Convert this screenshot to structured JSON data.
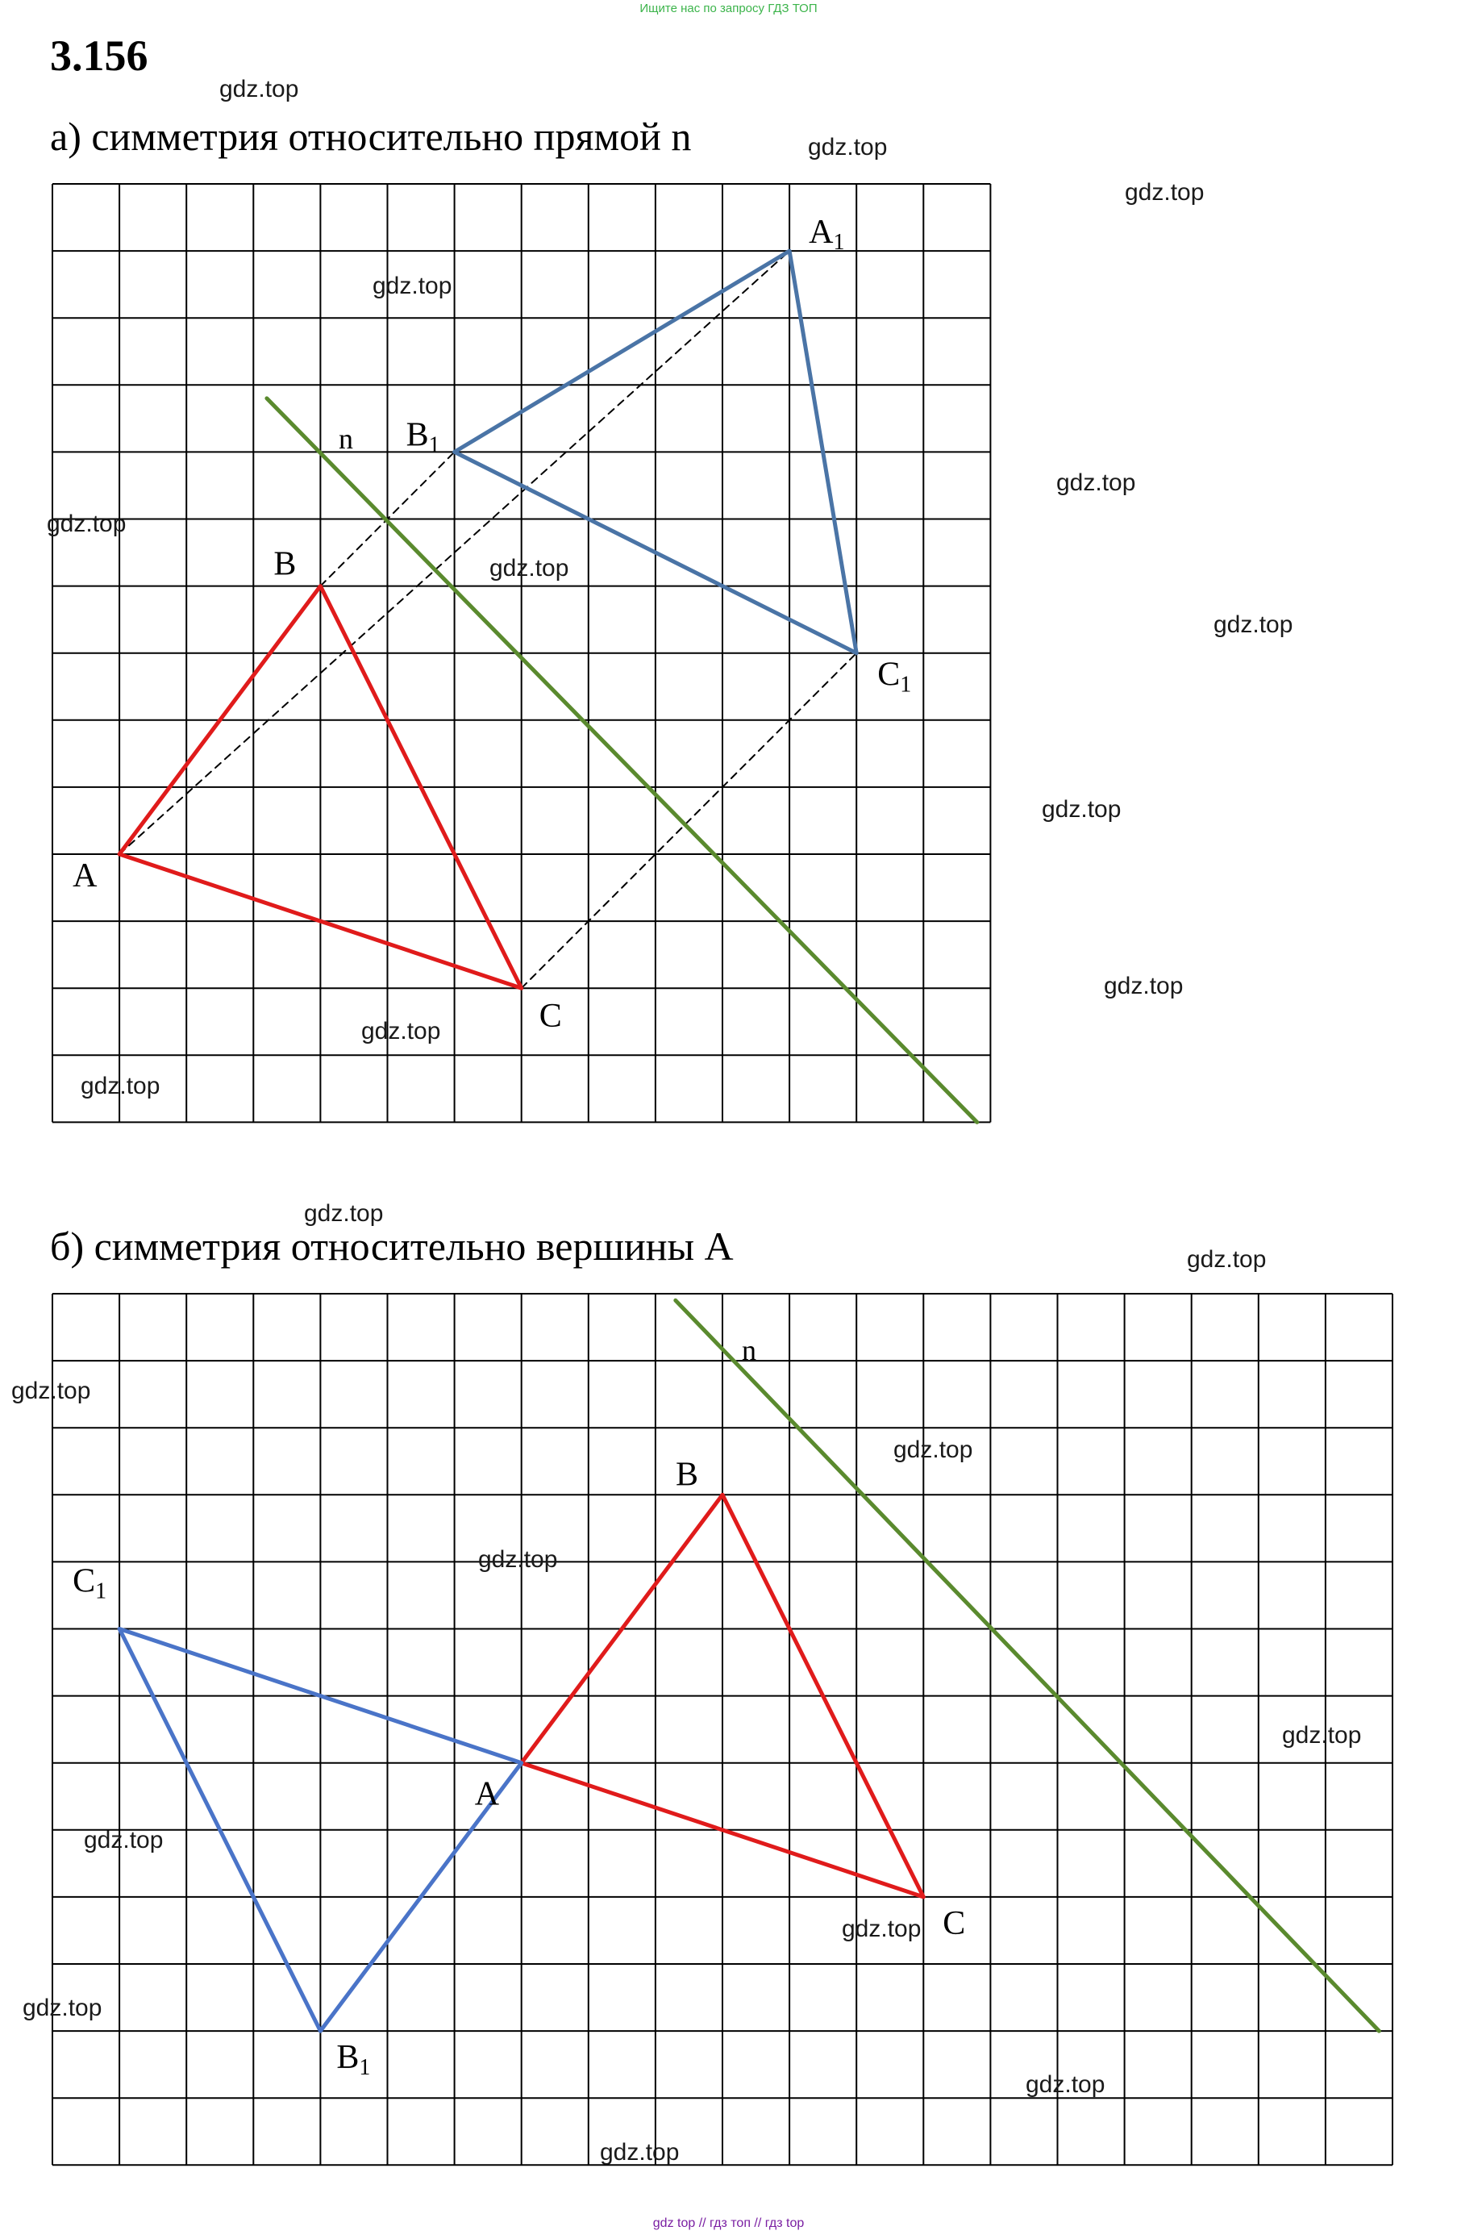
{
  "top_note": "Ищите нас по запросу ГДЗ ТОП",
  "problem_number": "3.156",
  "footer_note": "gdz top  //  гдз топ  //  гдз top",
  "watermark_text": "gdz.top",
  "colors": {
    "original_triangle": "#e01b1b",
    "image_triangle_a": "#4a74a6",
    "image_triangle_b": "#4a74c8",
    "line_n": "#5a8a2e",
    "grid": "#000000",
    "construction_lines": "#000000"
  },
  "part_a": {
    "title": "а) симметрия относительно прямой n",
    "grid": {
      "cols": 14,
      "rows": 14
    },
    "line_n": {
      "label": "n",
      "from": [
        3.2,
        3.2
      ],
      "to": [
        13.8,
        14
      ]
    },
    "original": {
      "A": {
        "label": "A",
        "x": 1,
        "y": 10
      },
      "B": {
        "label": "B",
        "x": 4,
        "y": 6
      },
      "C": {
        "label": "C",
        "x": 7,
        "y": 12
      }
    },
    "image": {
      "A1": {
        "label": "A",
        "sub": "1",
        "x": 11,
        "y": 1
      },
      "B1": {
        "label": "B",
        "sub": "1",
        "x": 6,
        "y": 4
      },
      "C1": {
        "label": "C",
        "sub": "1",
        "x": 12,
        "y": 7
      }
    }
  },
  "part_b": {
    "title": "б) симметрия относительно вершины А",
    "grid": {
      "cols": 20,
      "rows": 13
    },
    "line_n": {
      "label": "n",
      "from": [
        9.3,
        0.1
      ],
      "to": [
        19.8,
        11
      ]
    },
    "original": {
      "A": {
        "label": "A",
        "x": 7,
        "y": 7
      },
      "B": {
        "label": "B",
        "x": 10,
        "y": 3
      },
      "C": {
        "label": "C",
        "x": 13,
        "y": 9
      }
    },
    "image": {
      "B1": {
        "label": "B",
        "sub": "1",
        "x": 4,
        "y": 11
      },
      "C1": {
        "label": "C",
        "sub": "1",
        "x": 1,
        "y": 5
      }
    }
  }
}
